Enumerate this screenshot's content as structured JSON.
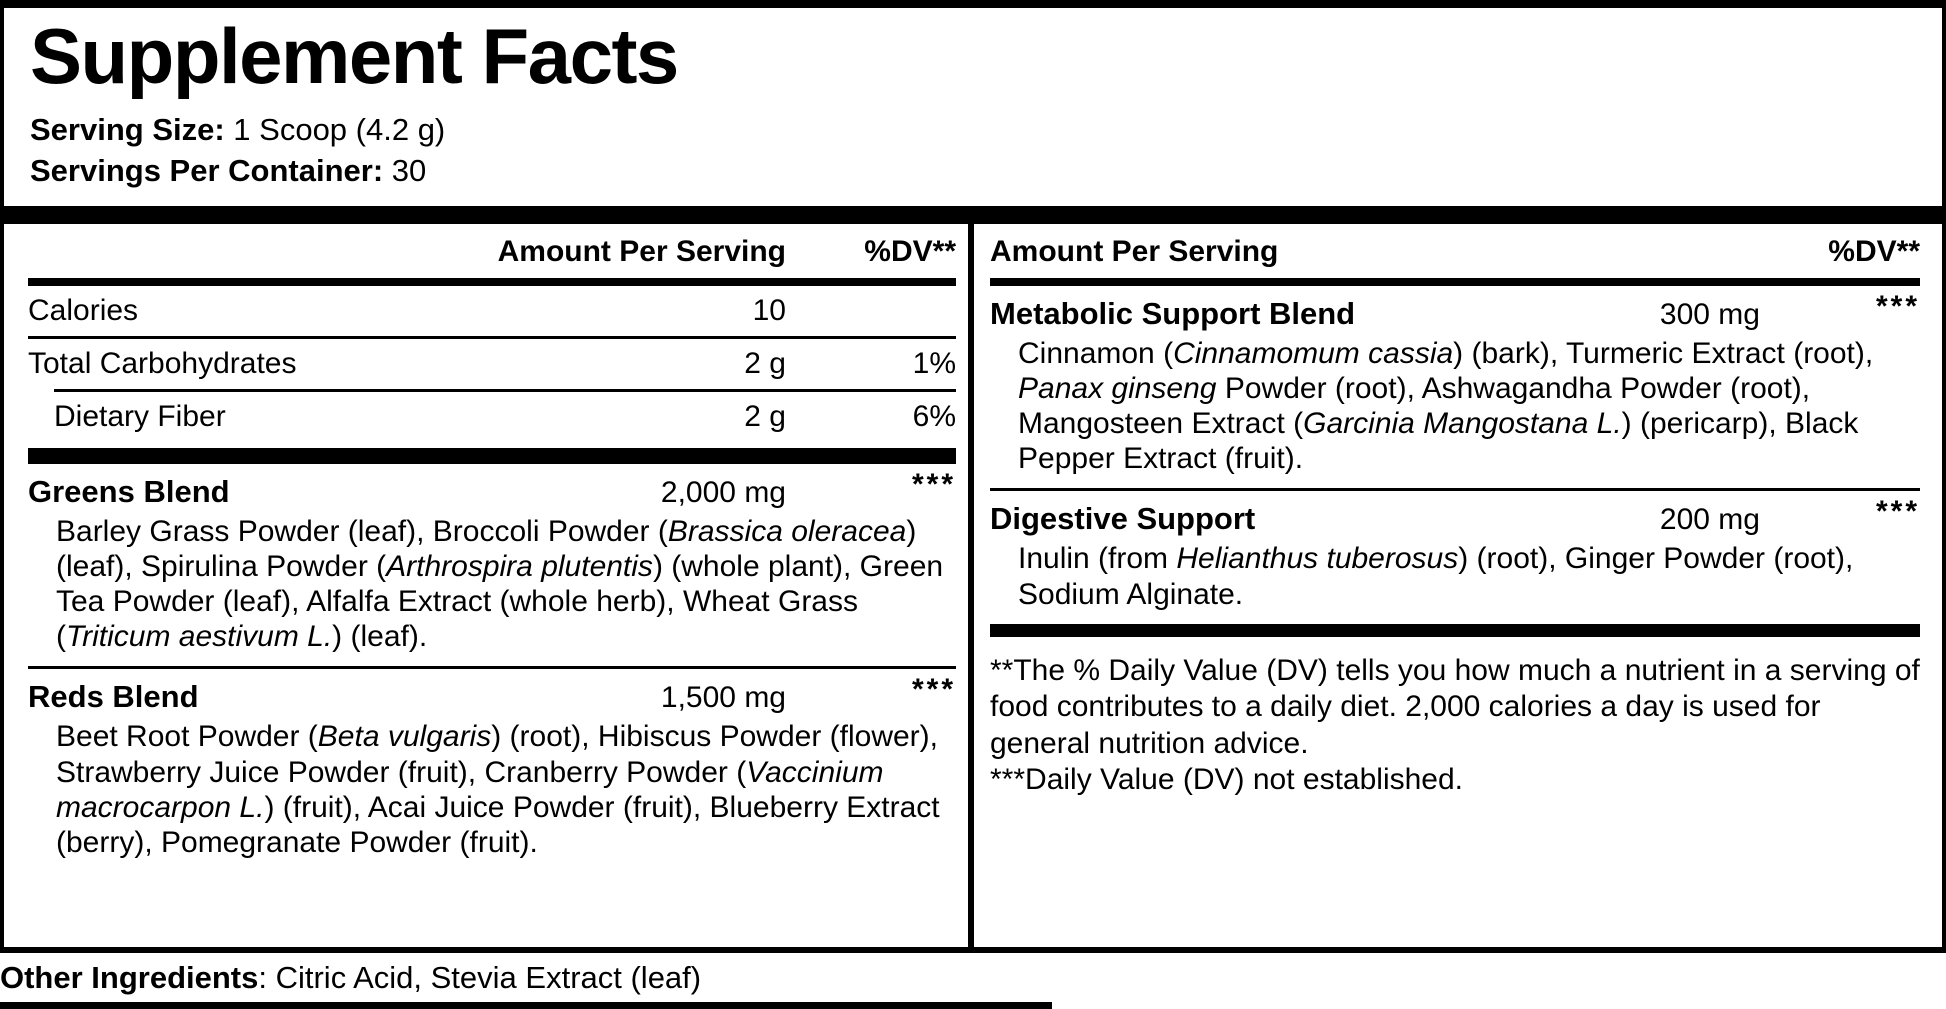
{
  "colors": {
    "text": "#000000",
    "background": "#ffffff"
  },
  "title": "Supplement Facts",
  "serving": {
    "size_label": "Serving Size:",
    "size_value": " 1 Scoop (4.2 g)",
    "per_container_label": "Servings Per Container:",
    "per_container_value": " 30"
  },
  "left": {
    "header": {
      "amount": "Amount Per Serving",
      "dv": "%DV**"
    },
    "rows": [
      {
        "name": "Calories",
        "amount": "10",
        "dv": ""
      },
      {
        "name": "Total Carbohydrates",
        "amount": "2 g",
        "dv": "1%"
      },
      {
        "name": "Dietary Fiber",
        "amount": "2 g",
        "dv": "6%"
      }
    ],
    "blends": [
      {
        "name": "Greens Blend",
        "amount": "2,000 mg",
        "dv": "***",
        "ingredients": [
          {
            "t": "Barley Grass Powder (leaf), Broccoli Powder ("
          },
          {
            "t": "Brassica oleracea",
            "i": true
          },
          {
            "t": ") (leaf), Spirulina Powder ("
          },
          {
            "t": "Arthrospira plutentis",
            "i": true
          },
          {
            "t": ") (whole plant), Green Tea Powder (leaf), Alfalfa Extract (whole herb), Wheat Grass ("
          },
          {
            "t": "Triticum aestivum L.",
            "i": true
          },
          {
            "t": ") (leaf)."
          }
        ]
      },
      {
        "name": "Reds Blend",
        "amount": "1,500 mg",
        "dv": "***",
        "ingredients": [
          {
            "t": "Beet Root Powder ("
          },
          {
            "t": "Beta vulgaris",
            "i": true
          },
          {
            "t": ") (root), Hibiscus Powder (flower), Strawberry Juice Powder (fruit), Cranberry Powder ("
          },
          {
            "t": "Vaccinium macrocarpon L.",
            "i": true
          },
          {
            "t": ") (fruit), Acai Juice Powder (fruit), Blueberry Extract (berry), Pomegranate Powder (fruit)."
          }
        ]
      }
    ]
  },
  "right": {
    "header": {
      "amount": "Amount Per Serving",
      "dv": "%DV**"
    },
    "blends": [
      {
        "name": "Metabolic Support Blend",
        "amount": "300 mg",
        "dv": "***",
        "ingredients": [
          {
            "t": "Cinnamon ("
          },
          {
            "t": "Cinnamomum cassia",
            "i": true
          },
          {
            "t": ") (bark), Turmeric Extract (root), "
          },
          {
            "t": "Panax ginseng",
            "i": true
          },
          {
            "t": " Powder (root), Ashwagandha Powder (root), Mangosteen Extract ("
          },
          {
            "t": "Garcinia Mangostana L.",
            "i": true
          },
          {
            "t": ") (pericarp), Black Pepper Extract (fruit)."
          }
        ]
      },
      {
        "name": "Digestive Support",
        "amount": "200 mg",
        "dv": "***",
        "ingredients": [
          {
            "t": "Inulin (from "
          },
          {
            "t": "Helianthus tuberosus",
            "i": true
          },
          {
            "t": ") (root), Ginger Powder (root), Sodium Alginate."
          }
        ]
      }
    ],
    "footnotes": [
      "**The % Daily Value (DV) tells you how much a nutrient in a serving of food contributes to a daily diet. 2,000 calories a day is used for general nutrition advice.",
      "***Daily Value (DV) not established."
    ]
  },
  "other_ingredients": {
    "label": "Other Ingredients",
    "value": ": Citric Acid, Stevia Extract (leaf)"
  }
}
